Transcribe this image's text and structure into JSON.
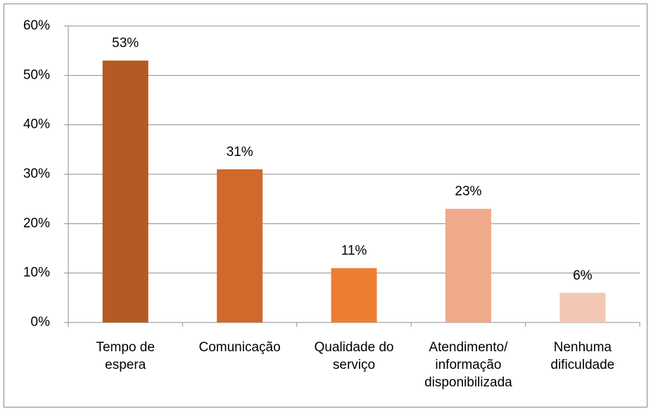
{
  "chart_data": {
    "type": "bar",
    "categories": [
      [
        "Tempo de",
        "espera"
      ],
      [
        "Comunicação"
      ],
      [
        "Qualidade do",
        "serviço"
      ],
      [
        "Atendimento/",
        "informação",
        "disponibilizada"
      ],
      [
        "Nenhuma",
        "dificuldade"
      ]
    ],
    "values": [
      53,
      31,
      11,
      23,
      6
    ],
    "value_labels": [
      "53%",
      "31%",
      "11%",
      "23%",
      "6%"
    ],
    "colors": [
      "#b35b22",
      "#d0692b",
      "#ed7d31",
      "#f0a98a",
      "#f4c7b5"
    ],
    "ylim": [
      0,
      60
    ],
    "yticks": [
      {
        "value": 0,
        "label": "0%"
      },
      {
        "value": 10,
        "label": "10%"
      },
      {
        "value": 20,
        "label": "20%"
      },
      {
        "value": 30,
        "label": "30%"
      },
      {
        "value": 40,
        "label": "40%"
      },
      {
        "value": 50,
        "label": "50%"
      },
      {
        "value": 60,
        "label": "60%"
      }
    ],
    "grid": true
  }
}
